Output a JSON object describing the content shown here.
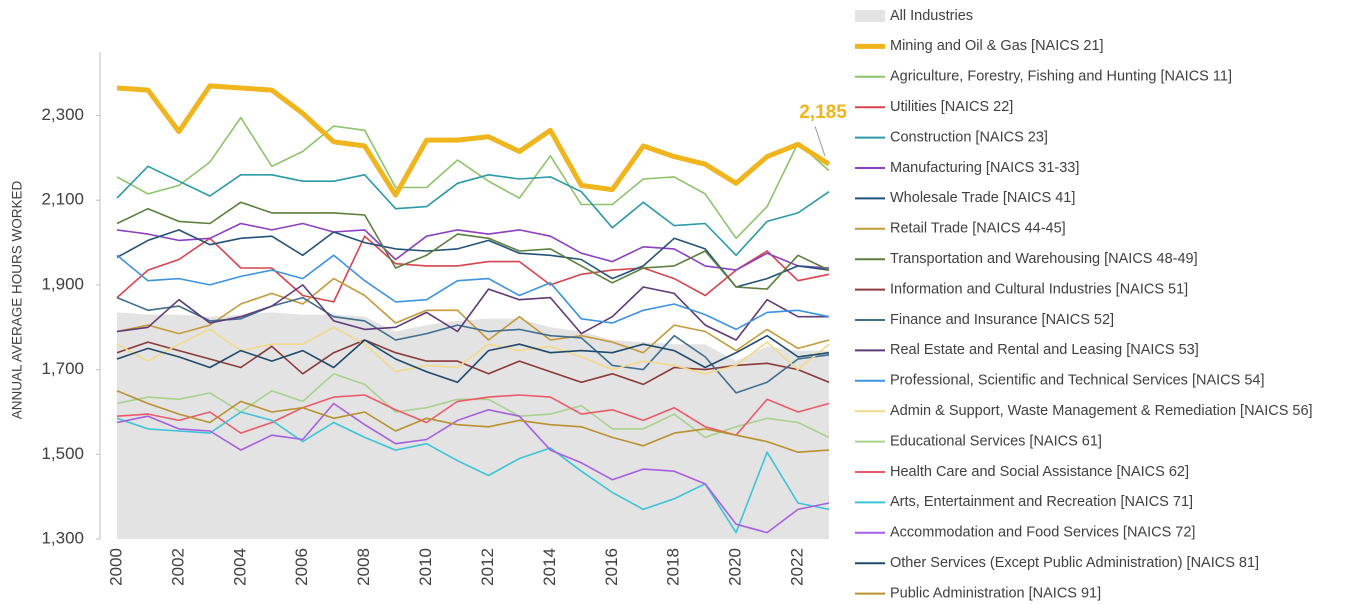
{
  "chart_data": {
    "type": "line",
    "y_label": "ANNUAL AVERAGE HOURS WORKED",
    "annotation": "2,185",
    "x": [
      2000,
      2001,
      2002,
      2003,
      2004,
      2005,
      2006,
      2007,
      2008,
      2009,
      2010,
      2011,
      2012,
      2013,
      2014,
      2015,
      2016,
      2017,
      2018,
      2019,
      2020,
      2021,
      2022,
      2023
    ],
    "xlim": [
      2000,
      2023
    ],
    "xticks": [
      2000,
      2002,
      2004,
      2006,
      2008,
      2010,
      2012,
      2014,
      2016,
      2018,
      2020,
      2022
    ],
    "ylim": [
      1300,
      2450
    ],
    "yticks": [
      {
        "value": 1300,
        "label": "1,300"
      },
      {
        "value": 1500,
        "label": "1,500"
      },
      {
        "value": 1700,
        "label": "1,700"
      },
      {
        "value": 1900,
        "label": "1,900"
      },
      {
        "value": 2100,
        "label": "2,100"
      },
      {
        "value": 2300,
        "label": "2,300"
      }
    ],
    "grid": false,
    "series": [
      {
        "name": "All Industries",
        "color": "#e3e3e3",
        "area": true,
        "values": [
          1835,
          1830,
          1830,
          1825,
          1830,
          1835,
          1830,
          1830,
          1825,
          1790,
          1805,
          1815,
          1820,
          1820,
          1800,
          1790,
          1770,
          1765,
          1760,
          1760,
          1720,
          1755,
          1745,
          1745
        ]
      },
      {
        "name": "Mining and Oil & Gas [NAICS 21]",
        "color": "#f0b41c",
        "line_width": 5,
        "values": [
          2365,
          2360,
          2262,
          2370,
          2365,
          2360,
          2305,
          2238,
          2228,
          2112,
          2242,
          2242,
          2250,
          2215,
          2265,
          2135,
          2125,
          2228,
          2203,
          2185,
          2140,
          2203,
          2232,
          2185
        ]
      },
      {
        "name": "Agriculture, Forestry, Fishing and Hunting [NAICS 11]",
        "color": "#8cc46a",
        "values": [
          2155,
          2115,
          2135,
          2190,
          2295,
          2180,
          2215,
          2275,
          2265,
          2130,
          2130,
          2195,
          2145,
          2105,
          2205,
          2090,
          2090,
          2150,
          2155,
          2115,
          2010,
          2085,
          2235,
          2170
        ]
      },
      {
        "name": "Utilities [NAICS 22]",
        "color": "#d9434e",
        "values": [
          1870,
          1935,
          1960,
          2010,
          1940,
          1940,
          1875,
          1860,
          2015,
          1950,
          1945,
          1945,
          1955,
          1955,
          1900,
          1925,
          1935,
          1940,
          1915,
          1875,
          1935,
          1980,
          1910,
          1925
        ]
      },
      {
        "name": "Construction [NAICS 23]",
        "color": "#2a9aa8",
        "values": [
          2105,
          2180,
          2145,
          2110,
          2160,
          2160,
          2145,
          2145,
          2160,
          2080,
          2085,
          2140,
          2160,
          2150,
          2155,
          2120,
          2035,
          2095,
          2040,
          2045,
          1970,
          2050,
          2070,
          2120
        ]
      },
      {
        "name": "Manufacturing [NAICS 31-33]",
        "color": "#8d3fc2",
        "values": [
          2030,
          2020,
          2005,
          2010,
          2045,
          2030,
          2045,
          2025,
          2030,
          1960,
          2015,
          2030,
          2020,
          2030,
          2015,
          1975,
          1955,
          1990,
          1985,
          1945,
          1935,
          1975,
          1945,
          1940
        ]
      },
      {
        "name": "Wholesale Trade [NAICS 41]",
        "color": "#23527c",
        "values": [
          1965,
          2005,
          2030,
          1995,
          2010,
          2015,
          1970,
          2025,
          2000,
          1985,
          1980,
          1985,
          2005,
          1975,
          1970,
          1960,
          1915,
          1945,
          2010,
          1985,
          1895,
          1915,
          1945,
          1935
        ]
      },
      {
        "name": "Retail Trade [NAICS 44-45]",
        "color": "#c49a3a",
        "values": [
          1790,
          1805,
          1785,
          1805,
          1855,
          1880,
          1855,
          1915,
          1875,
          1810,
          1840,
          1840,
          1770,
          1825,
          1770,
          1780,
          1765,
          1740,
          1805,
          1790,
          1745,
          1795,
          1750,
          1770
        ]
      },
      {
        "name": "Transportation and Warehousing [NAICS 48-49]",
        "color": "#5c7f3c",
        "values": [
          2045,
          2080,
          2050,
          2045,
          2095,
          2070,
          2070,
          2070,
          2065,
          1940,
          1970,
          2020,
          2010,
          1980,
          1985,
          1945,
          1905,
          1940,
          1945,
          1980,
          1895,
          1890,
          1970,
          1935
        ]
      },
      {
        "name": "Information and Cultural Industries [NAICS 51]",
        "color": "#8b3a3a",
        "values": [
          1740,
          1765,
          1745,
          1725,
          1705,
          1755,
          1690,
          1740,
          1770,
          1740,
          1720,
          1720,
          1690,
          1720,
          1695,
          1670,
          1690,
          1665,
          1705,
          1700,
          1710,
          1715,
          1700,
          1670
        ]
      },
      {
        "name": "Finance and Insurance [NAICS 52]",
        "color": "#3f6e8f",
        "values": [
          1870,
          1840,
          1850,
          1815,
          1820,
          1850,
          1870,
          1825,
          1815,
          1770,
          1785,
          1805,
          1790,
          1795,
          1780,
          1775,
          1710,
          1700,
          1780,
          1730,
          1645,
          1670,
          1725,
          1735
        ]
      },
      {
        "name": "Real Estate and Rental and Leasing [NAICS 53]",
        "color": "#5e3a78",
        "values": [
          1790,
          1800,
          1865,
          1810,
          1825,
          1850,
          1900,
          1815,
          1795,
          1800,
          1835,
          1790,
          1890,
          1865,
          1870,
          1785,
          1825,
          1895,
          1880,
          1805,
          1770,
          1865,
          1825,
          1825
        ]
      },
      {
        "name": "Professional, Scientific and Technical Services [NAICS 54]",
        "color": "#3c94e0",
        "values": [
          1970,
          1910,
          1915,
          1900,
          1920,
          1935,
          1915,
          1970,
          1910,
          1860,
          1865,
          1910,
          1915,
          1875,
          1905,
          1820,
          1810,
          1840,
          1855,
          1830,
          1795,
          1835,
          1840,
          1825
        ]
      },
      {
        "name": "Admin & Support, Waste Management & Remediation [NAICS 56]",
        "color": "#f2d98a",
        "values": [
          1760,
          1720,
          1760,
          1795,
          1745,
          1760,
          1760,
          1800,
          1760,
          1695,
          1710,
          1705,
          1760,
          1745,
          1755,
          1730,
          1700,
          1720,
          1710,
          1690,
          1710,
          1765,
          1700,
          1760
        ]
      },
      {
        "name": "Educational Services [NAICS 61]",
        "color": "#a9d18e",
        "values": [
          1620,
          1635,
          1630,
          1645,
          1600,
          1650,
          1625,
          1690,
          1665,
          1600,
          1610,
          1630,
          1630,
          1590,
          1595,
          1615,
          1560,
          1560,
          1595,
          1540,
          1565,
          1585,
          1575,
          1540
        ]
      },
      {
        "name": "Health Care and Social Assistance [NAICS 62]",
        "color": "#ec5a6a",
        "values": [
          1590,
          1595,
          1580,
          1600,
          1550,
          1575,
          1610,
          1635,
          1640,
          1605,
          1575,
          1625,
          1635,
          1640,
          1635,
          1595,
          1605,
          1580,
          1610,
          1565,
          1545,
          1630,
          1600,
          1620
        ]
      },
      {
        "name": "Arts, Entertainment and Recreation [NAICS 71]",
        "color": "#3cc3d8",
        "values": [
          1585,
          1560,
          1555,
          1550,
          1600,
          1580,
          1530,
          1575,
          1540,
          1510,
          1525,
          1485,
          1450,
          1490,
          1515,
          1460,
          1410,
          1370,
          1395,
          1430,
          1315,
          1505,
          1385,
          1370
        ]
      },
      {
        "name": "Accommodation and Food Services [NAICS 72]",
        "color": "#a55fe0",
        "values": [
          1575,
          1590,
          1560,
          1555,
          1510,
          1545,
          1535,
          1620,
          1570,
          1525,
          1535,
          1580,
          1605,
          1590,
          1510,
          1480,
          1440,
          1465,
          1460,
          1430,
          1335,
          1315,
          1370,
          1385
        ]
      },
      {
        "name": "Other Services (Except Public Administration) [NAICS 81]",
        "color": "#1f4a6b",
        "values": [
          1725,
          1750,
          1730,
          1705,
          1745,
          1720,
          1745,
          1705,
          1770,
          1725,
          1695,
          1670,
          1745,
          1760,
          1740,
          1745,
          1740,
          1760,
          1745,
          1705,
          1740,
          1780,
          1730,
          1740
        ]
      },
      {
        "name": "Public Administration [NAICS 91]",
        "color": "#b8912f",
        "values": [
          1650,
          1620,
          1595,
          1575,
          1625,
          1600,
          1610,
          1585,
          1600,
          1555,
          1585,
          1570,
          1565,
          1580,
          1570,
          1565,
          1540,
          1520,
          1550,
          1560,
          1545,
          1530,
          1505,
          1510
        ]
      }
    ]
  }
}
